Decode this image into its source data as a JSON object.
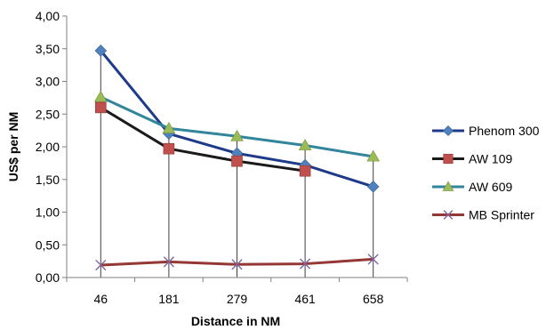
{
  "chart_data": {
    "type": "line",
    "title": "",
    "xlabel": "Distance in NM",
    "ylabel": "US$ per NM",
    "categories": [
      "46",
      "181",
      "279",
      "461",
      "658"
    ],
    "ylim": [
      0,
      4
    ],
    "yticks": [
      "0,00",
      "0,50",
      "1,00",
      "1,50",
      "2,00",
      "2,50",
      "3,00",
      "3,50",
      "4,00"
    ],
    "grid": false,
    "drop_lines": true,
    "legend_position": "right",
    "series": [
      {
        "name": "Phenom 300",
        "marker": "diamond",
        "color": "#1f3a8a",
        "marker_color": "#4f81bd",
        "values": [
          3.47,
          2.2,
          1.9,
          1.72,
          1.39
        ]
      },
      {
        "name": "AW 109",
        "marker": "square",
        "color": "#1a1a1a",
        "marker_color": "#c0504d",
        "values": [
          2.6,
          1.97,
          1.78,
          1.63,
          null
        ]
      },
      {
        "name": "AW 609",
        "marker": "triangle",
        "color": "#31859c",
        "marker_color": "#9bbb59",
        "values": [
          2.76,
          2.28,
          2.16,
          2.02,
          1.85
        ]
      },
      {
        "name": "MB Sprinter",
        "marker": "x",
        "color": "#953735",
        "marker_color": "#8064a2",
        "values": [
          0.19,
          0.24,
          0.2,
          0.21,
          0.28
        ]
      }
    ]
  }
}
